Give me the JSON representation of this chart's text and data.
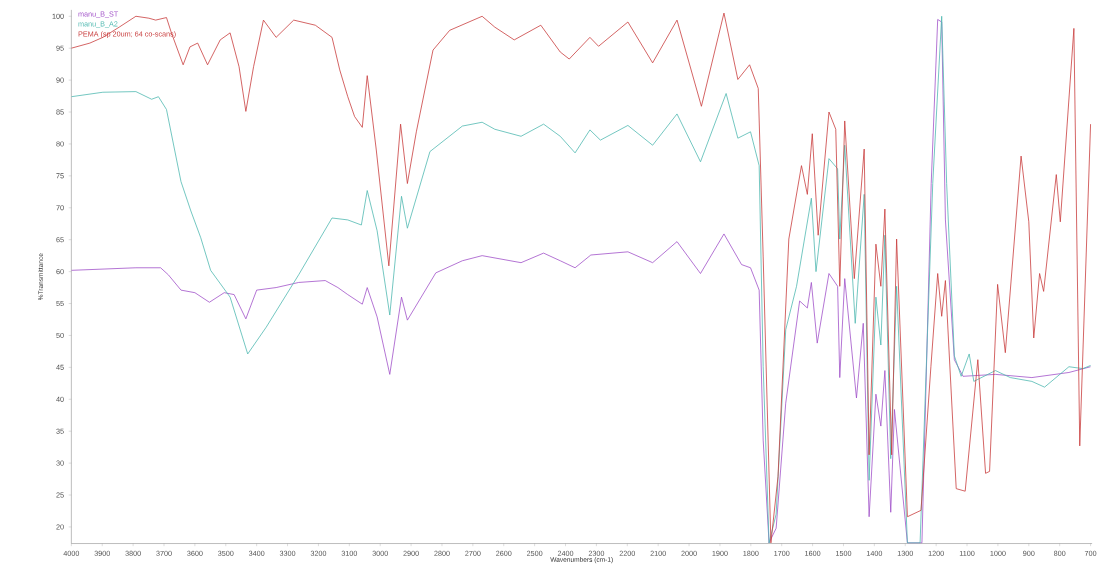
{
  "chart_data": {
    "type": "line",
    "xlabel": "Wavenumbers (cm-1)",
    "ylabel": "%Transmittance",
    "xlim": [
      4000,
      695
    ],
    "ylim": [
      17.4,
      101
    ],
    "xticks": [
      4000,
      3900,
      3800,
      3700,
      3600,
      3500,
      3400,
      3300,
      3200,
      3100,
      3000,
      2900,
      2800,
      2700,
      2600,
      2500,
      2400,
      2300,
      2200,
      2100,
      2000,
      1900,
      1800,
      1700,
      1600,
      1500,
      1400,
      1300,
      1200,
      1100,
      1000,
      900,
      800,
      700
    ],
    "yticks": [
      20,
      25,
      30,
      35,
      40,
      45,
      50,
      55,
      60,
      65,
      70,
      75,
      80,
      85,
      90,
      95,
      100
    ],
    "grid": false,
    "legend": "top left",
    "line_style": "solid",
    "marker": "none",
    "series": [
      {
        "name": "manu_B_ST",
        "color": "#a050c8",
        "x": [
          4000,
          3791,
          3711,
          3686,
          3645,
          3600,
          3553,
          3505,
          3473,
          3435,
          3400,
          3337,
          3264,
          3178,
          3137,
          3105,
          3058,
          3042,
          3010,
          2969,
          2931,
          2912,
          2820,
          2734,
          2670,
          2544,
          2471,
          2417,
          2369,
          2318,
          2198,
          2118,
          2039,
          1963,
          1887,
          1830,
          1801,
          1773,
          1760,
          1741,
          1718,
          1687,
          1642,
          1617,
          1604,
          1585,
          1547,
          1519,
          1512,
          1496,
          1458,
          1436,
          1417,
          1395,
          1379,
          1366,
          1347,
          1335,
          1293,
          1246,
          1216,
          1195,
          1182,
          1170,
          1141,
          1113,
          1008,
          890,
          770,
          700
        ],
        "values": [
          60.2,
          60.6,
          60.6,
          59.5,
          57.1,
          56.7,
          55.2,
          56.7,
          56.4,
          52.6,
          57.1,
          57.5,
          58.3,
          58.6,
          57.5,
          56.4,
          54.9,
          57.5,
          52.9,
          43.9,
          56.0,
          52.4,
          59.8,
          61.7,
          62.5,
          61.4,
          62.9,
          61.7,
          60.6,
          62.6,
          63.1,
          61.4,
          64.7,
          59.7,
          65.9,
          61.1,
          60.6,
          57.1,
          33.6,
          17.5,
          19.8,
          39.4,
          55.4,
          54.3,
          58.3,
          48.8,
          59.7,
          57.7,
          43.4,
          58.9,
          40.2,
          51.9,
          21.6,
          40.8,
          35.8,
          44.5,
          22.3,
          38.4,
          17.5,
          17.5,
          73.8,
          99.5,
          99.1,
          68.1,
          46.2,
          43.6,
          43.9,
          43.4,
          44.2,
          45.1
        ]
      },
      {
        "name": "manu_B_A2",
        "color": "#4fb8b0",
        "x": [
          4000,
          3898,
          3791,
          3740,
          3718,
          3692,
          3645,
          3613,
          3581,
          3549,
          3486,
          3429,
          3369,
          3264,
          3156,
          3105,
          3061,
          3042,
          3010,
          2969,
          2931,
          2912,
          2839,
          2734,
          2670,
          2629,
          2544,
          2471,
          2417,
          2369,
          2321,
          2287,
          2198,
          2118,
          2039,
          1963,
          1880,
          1842,
          1801,
          1773,
          1760,
          1741,
          1718,
          1687,
          1652,
          1604,
          1589,
          1547,
          1519,
          1512,
          1496,
          1462,
          1433,
          1417,
          1395,
          1379,
          1366,
          1347,
          1328,
          1293,
          1252,
          1236,
          1211,
          1182,
          1166,
          1141,
          1119,
          1093,
          1078,
          1008,
          960,
          890,
          849,
          770,
          725,
          700
        ],
        "values": [
          87.4,
          88.1,
          88.2,
          87.0,
          87.4,
          85.4,
          74.1,
          69.5,
          65.3,
          60.2,
          56.0,
          47.1,
          51.3,
          59.5,
          68.4,
          68.1,
          67.3,
          72.7,
          66.4,
          53.2,
          71.8,
          66.8,
          78.8,
          82.8,
          83.4,
          82.3,
          81.2,
          83.1,
          81.2,
          78.6,
          82.2,
          80.6,
          82.9,
          79.8,
          84.7,
          77.2,
          87.9,
          80.9,
          81.9,
          76.6,
          45.1,
          17.5,
          22.0,
          50.9,
          57.7,
          71.5,
          60.0,
          77.7,
          76.1,
          65.1,
          79.8,
          51.9,
          72.1,
          27.3,
          56.0,
          48.5,
          65.7,
          30.7,
          57.7,
          17.5,
          17.5,
          39.4,
          73.8,
          100.0,
          73.8,
          46.8,
          43.6,
          47.1,
          42.8,
          44.5,
          43.4,
          42.8,
          41.9,
          45.1,
          44.8,
          45.3
        ]
      },
      {
        "name": "PEMA (sp 20um; 64 co-scans)",
        "color": "#c83c3c",
        "x": [
          4000,
          3940,
          3898,
          3845,
          3791,
          3749,
          3727,
          3692,
          3676,
          3638,
          3616,
          3591,
          3559,
          3518,
          3486,
          3457,
          3435,
          3410,
          3378,
          3337,
          3280,
          3210,
          3156,
          3131,
          3105,
          3083,
          3058,
          3042,
          3013,
          2972,
          2934,
          2912,
          2883,
          2829,
          2775,
          2670,
          2629,
          2566,
          2480,
          2417,
          2388,
          2321,
          2293,
          2198,
          2118,
          2039,
          1960,
          1887,
          1842,
          1804,
          1776,
          1760,
          1735,
          1712,
          1677,
          1636,
          1617,
          1601,
          1582,
          1547,
          1525,
          1512,
          1496,
          1465,
          1433,
          1417,
          1395,
          1379,
          1366,
          1344,
          1328,
          1293,
          1249,
          1217,
          1195,
          1182,
          1170,
          1135,
          1106,
          1065,
          1040,
          1027,
          1001,
          976,
          925,
          900,
          884,
          865,
          852,
          811,
          798,
          754,
          735,
          700
        ],
        "values": [
          95.0,
          95.8,
          96.7,
          98.3,
          100.0,
          99.7,
          99.4,
          99.8,
          97.4,
          92.4,
          95.2,
          95.8,
          92.4,
          96.3,
          97.4,
          92.1,
          85.1,
          92.1,
          99.4,
          96.7,
          99.4,
          98.6,
          96.7,
          91.6,
          87.4,
          84.3,
          82.6,
          90.7,
          79.2,
          60.9,
          83.1,
          73.8,
          81.9,
          94.7,
          97.8,
          100.0,
          98.3,
          96.3,
          98.6,
          94.4,
          93.3,
          96.7,
          95.3,
          99.1,
          92.7,
          99.4,
          85.9,
          100.5,
          90.1,
          92.4,
          88.7,
          62.3,
          17.5,
          27.9,
          65.1,
          76.6,
          72.1,
          81.6,
          65.7,
          85.0,
          82.3,
          57.7,
          83.6,
          58.9,
          79.2,
          31.3,
          64.3,
          57.7,
          69.8,
          31.3,
          65.1,
          21.6,
          22.6,
          45.1,
          59.7,
          53.0,
          58.6,
          26.0,
          25.6,
          46.2,
          28.4,
          28.7,
          58.0,
          47.3,
          78.1,
          67.8,
          49.6,
          59.7,
          56.9,
          75.2,
          67.8,
          98.1,
          32.7,
          83.1
        ]
      }
    ]
  }
}
